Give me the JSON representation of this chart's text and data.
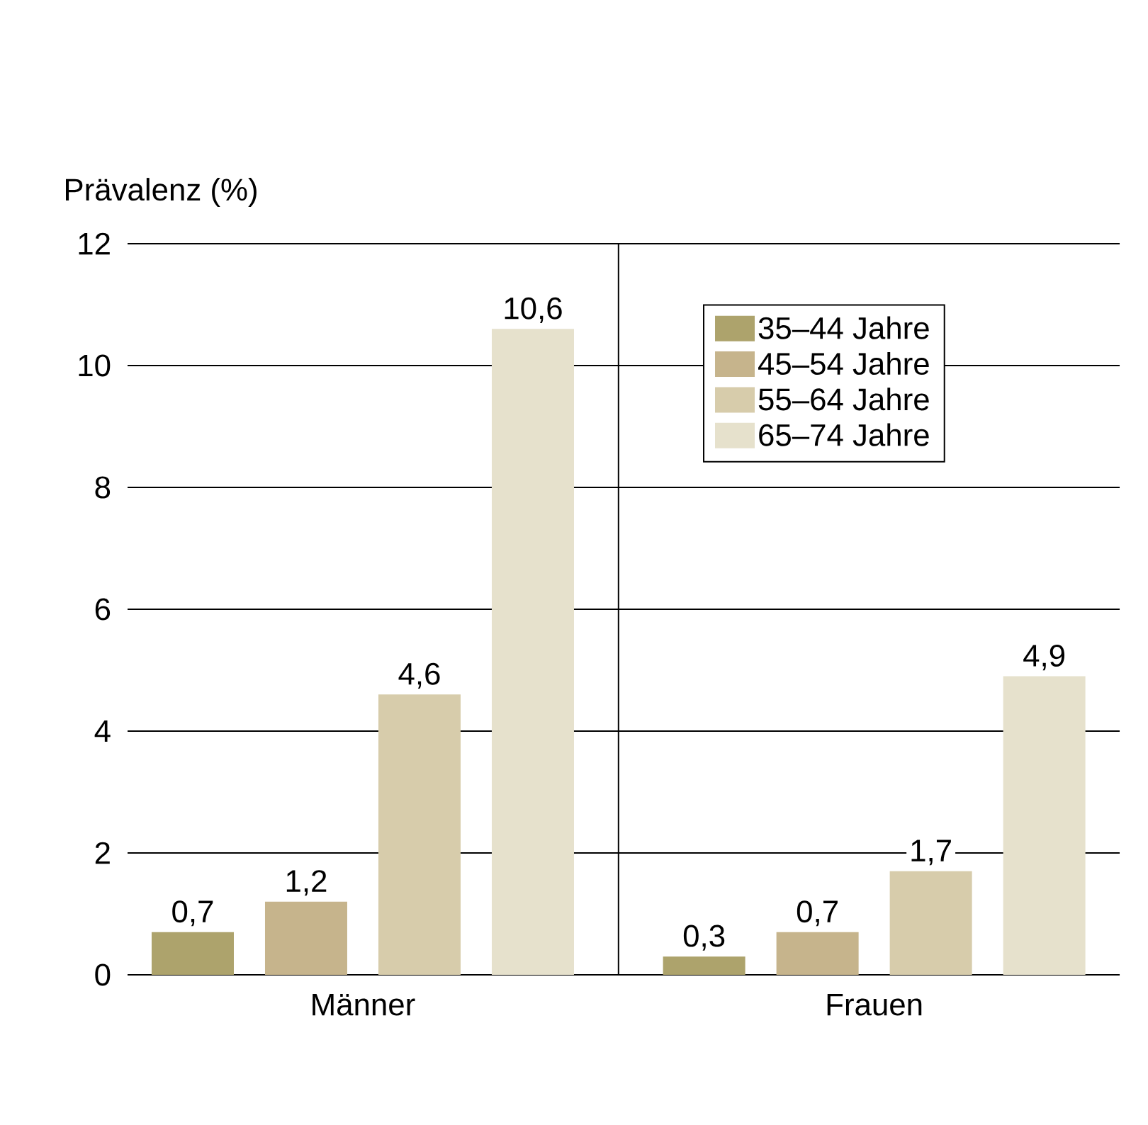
{
  "chart_data": {
    "type": "bar",
    "ylabel": "Prävalenz (%)",
    "categories": [
      "Männer",
      "Frauen"
    ],
    "series": [
      {
        "name": "35–44 Jahre",
        "color": "#ada36c",
        "values": [
          0.7,
          0.3
        ],
        "value_labels": [
          "0,7",
          "0,3"
        ]
      },
      {
        "name": "45–54 Jahre",
        "color": "#c6b48c",
        "values": [
          1.2,
          0.7
        ],
        "value_labels": [
          "1,2",
          "0,7"
        ]
      },
      {
        "name": "55–64 Jahre",
        "color": "#d7ccab",
        "values": [
          4.6,
          1.7
        ],
        "value_labels": [
          "4,6",
          "1,7"
        ]
      },
      {
        "name": "65–74 Jahre",
        "color": "#e6e1cc",
        "values": [
          10.6,
          4.9
        ],
        "value_labels": [
          "10,6",
          "4,9"
        ]
      }
    ],
    "ylim": [
      0,
      12
    ],
    "yticks": [
      0,
      2,
      4,
      6,
      8,
      10,
      12
    ],
    "grid": "y",
    "legend": "top right"
  }
}
